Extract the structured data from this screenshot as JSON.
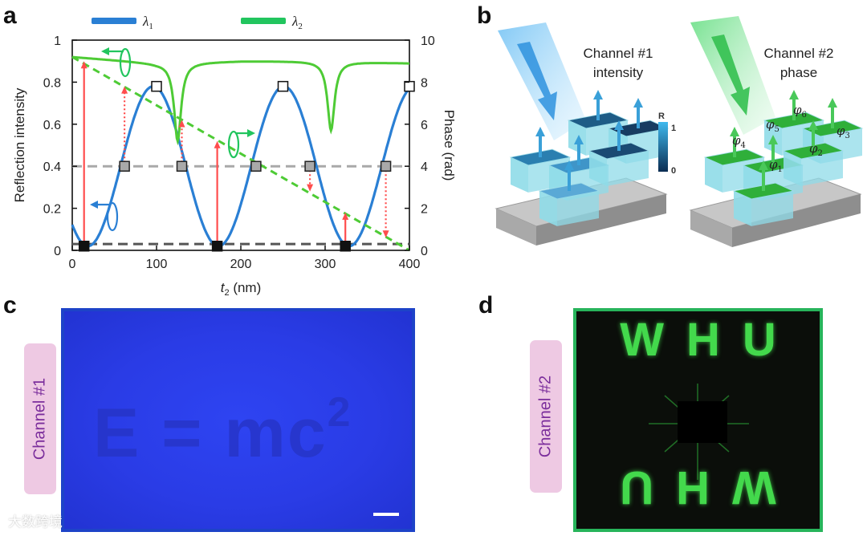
{
  "panel_labels": {
    "a": "a",
    "b": "b",
    "c": "c",
    "d": "d"
  },
  "chart_data": {
    "type": "line",
    "xlabel_var": "t",
    "xlabel_sub": "2",
    "xlabel_unit": " (nm)",
    "ylabel_left": "Reflection intensity",
    "ylabel_right": "Phase (rad)",
    "xlim": [
      0,
      400
    ],
    "ylim_left": [
      0,
      1
    ],
    "ylim_right": [
      0,
      10
    ],
    "x_ticks": [
      "0",
      "100",
      "200",
      "300",
      "400"
    ],
    "y_ticks_left": [
      "0",
      "0.2",
      "0.4",
      "0.6",
      "0.8",
      "1"
    ],
    "y_ticks_right": [
      "0",
      "2",
      "4",
      "6",
      "8",
      "10"
    ],
    "legend": [
      {
        "symbol": "λ",
        "sub": "1",
        "color": "#2a7fd4"
      },
      {
        "symbol": "λ",
        "sub": "2",
        "color": "#22c55e"
      }
    ],
    "series": [
      {
        "name": "λ1",
        "axis": "left",
        "color": "#2a7fd4",
        "period_nm": 155,
        "min": 0.02,
        "max": 0.78
      },
      {
        "name": "λ2",
        "axis": "left",
        "color": "#4ecb35",
        "baseline_points": [
          [
            0,
            0.92
          ],
          [
            100,
            0.89
          ],
          [
            200,
            0.9
          ],
          [
            300,
            0.9
          ],
          [
            400,
            0.89
          ]
        ],
        "dips": [
          [
            125,
            0.52
          ],
          [
            307,
            0.57
          ]
        ]
      },
      {
        "name": "phase",
        "axis": "right",
        "style": "dashed",
        "color": "#4ecb35",
        "x": [
          0,
          400
        ],
        "y": [
          9.2,
          0
        ]
      }
    ],
    "reference_lines": [
      {
        "y": 0.4,
        "color": "#a9a9a9"
      },
      {
        "y": 0.03,
        "color": "#555555"
      }
    ],
    "open_markers": [
      [
        100,
        0.78
      ],
      [
        250,
        0.78
      ],
      [
        400,
        0.78
      ]
    ],
    "grey_markers": [
      [
        62,
        0.4
      ],
      [
        130,
        0.4
      ],
      [
        218,
        0.4
      ],
      [
        282,
        0.4
      ],
      [
        372,
        0.4
      ]
    ],
    "black_markers": [
      [
        14,
        0.02
      ],
      [
        172,
        0.02
      ],
      [
        324,
        0.02
      ]
    ],
    "solid_arrows": [
      [
        14,
        0.02,
        0.9
      ],
      [
        172,
        0.02,
        0.52
      ],
      [
        324,
        0.02,
        0.18
      ]
    ],
    "dotted_arrows": [
      [
        62,
        0.4,
        0.78
      ],
      [
        130,
        0.4,
        0.62
      ],
      [
        282,
        0.4,
        0.28
      ],
      [
        372,
        0.4,
        0.06
      ]
    ]
  },
  "panel_b": {
    "channel1_title_line1": "Channel #1",
    "channel1_title_line2": "intensity",
    "channel2_title_line1": "Channel #2",
    "channel2_title_line2": "phase",
    "colorbar_title": "R",
    "colorbar_max": "1",
    "colorbar_min": "0",
    "phase_labels": [
      {
        "sym": "φ",
        "sub": "1"
      },
      {
        "sym": "φ",
        "sub": "2"
      },
      {
        "sym": "φ",
        "sub": "3"
      },
      {
        "sym": "φ",
        "sub": "4"
      },
      {
        "sym": "φ",
        "sub": "5"
      },
      {
        "sym": "φ",
        "sub": "6"
      }
    ]
  },
  "panel_c": {
    "side_label": "Channel #1",
    "formula_main": "E = mc",
    "formula_sup": "2"
  },
  "panel_d": {
    "side_label": "Channel #2",
    "top_text": "WHU",
    "bottom_text": "WHU"
  },
  "watermark": "大数跨境"
}
